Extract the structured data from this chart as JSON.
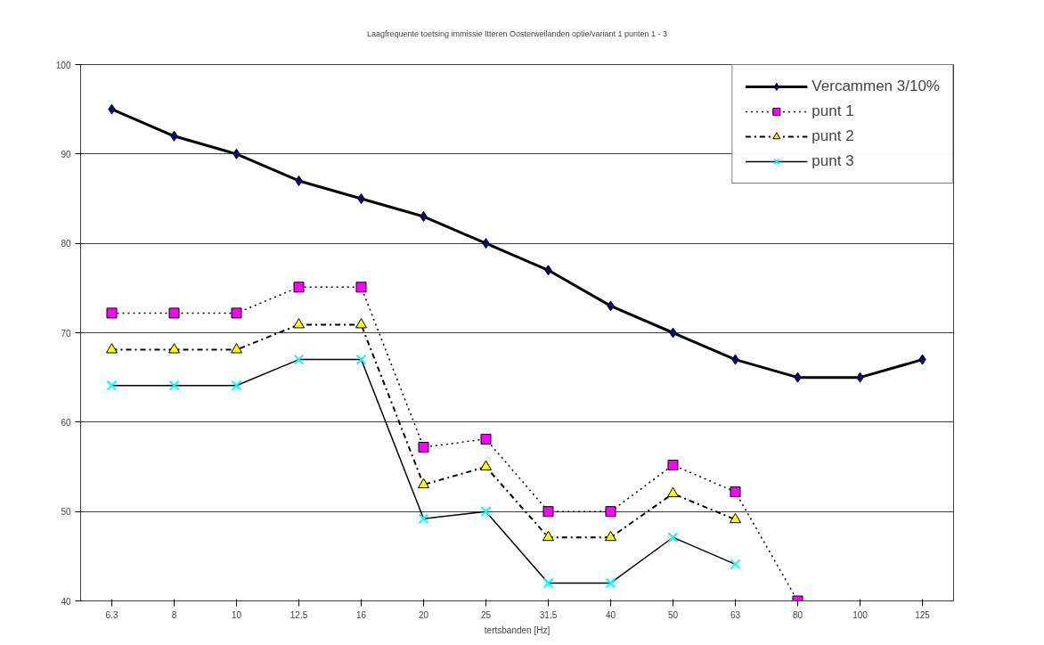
{
  "chart_data": {
    "type": "line",
    "title": "Laagfrequente toetsing immissie Itteren Oosterweilanden optie/variant 1 punten 1 - 3",
    "xlabel": "tertsbanden [Hz]",
    "categories": [
      "6.3",
      "8",
      "10",
      "12.5",
      "16",
      "20",
      "25",
      "31.5",
      "40",
      "50",
      "63",
      "80",
      "100",
      "125"
    ],
    "ylim": [
      40,
      100
    ],
    "yticks": [
      40,
      50,
      60,
      70,
      80,
      90,
      100
    ],
    "grid": "y",
    "legend": "top right",
    "series": [
      {
        "name": "Vercammen 3/10%",
        "color": "#000080",
        "marker": "diamond",
        "line_style": "solid",
        "values": [
          95,
          92,
          90,
          87,
          85,
          83,
          80,
          77,
          73,
          70,
          67,
          65,
          65,
          67
        ]
      },
      {
        "name": "punt 1",
        "color": "#ff00ff",
        "marker": "square",
        "line_style": "dotted",
        "values": [
          72.2,
          72.2,
          72.2,
          75.1,
          75.1,
          57.2,
          58.1,
          50,
          50,
          55.2,
          52.2,
          40,
          null,
          null
        ]
      },
      {
        "name": "punt 2",
        "color": "#ffff00",
        "marker": "triangle",
        "line_style": "dashdot",
        "values": [
          68.1,
          68.1,
          68.1,
          70.9,
          70.9,
          53,
          55,
          47.1,
          47.1,
          52,
          49.1,
          null,
          null,
          null
        ]
      },
      {
        "name": "punt 3",
        "color": "#00ffff",
        "marker": "cross",
        "line_style": "solid",
        "values": [
          64.1,
          64.1,
          64.1,
          67,
          67,
          49.2,
          50,
          42,
          42,
          47.1,
          44.1,
          null,
          null,
          null
        ]
      }
    ]
  }
}
